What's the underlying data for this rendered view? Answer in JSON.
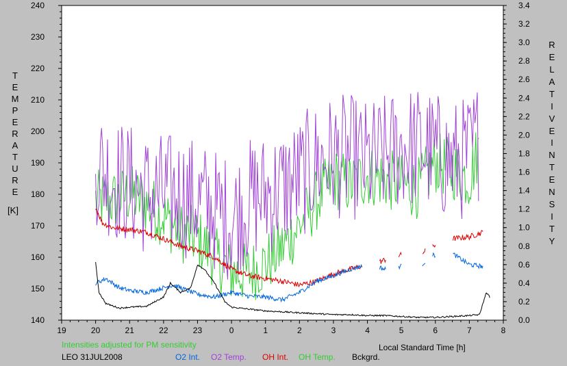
{
  "chart_data": {
    "type": "line",
    "title": "",
    "xlabel": "Local Standard Time [h]",
    "ylabel_left": "TEMPERATURE [K]",
    "ylabel_left_letters": [
      "T",
      "E",
      "M",
      "P",
      "E",
      "R",
      "A",
      "T",
      "U",
      "R",
      "E"
    ],
    "ylabel_left_unit": "[K]",
    "ylabel_right_letters": [
      "R",
      "E",
      "L",
      "A",
      "T",
      "I",
      "V",
      "E",
      "I",
      "N",
      "T",
      "E",
      "N",
      "S",
      "I",
      "T",
      "Y"
    ],
    "xlim": [
      19,
      32
    ],
    "ylim_left": [
      140,
      240
    ],
    "ylim_right": [
      0.0,
      3.4
    ],
    "x_tick_labels": [
      "19",
      "20",
      "21",
      "22",
      "23",
      "0",
      "1",
      "2",
      "3",
      "4",
      "5",
      "6",
      "7",
      "8"
    ],
    "y_left_tick_labels": [
      "140",
      "150",
      "160",
      "170",
      "180",
      "190",
      "200",
      "210",
      "220",
      "230",
      "240"
    ],
    "y_right_tick_labels": [
      "0.0",
      "0.2",
      "0.4",
      "0.6",
      "0.8",
      "1.0",
      "1.2",
      "1.4",
      "1.6",
      "1.8",
      "2.0",
      "2.2",
      "2.4",
      "2.6",
      "2.8",
      "3.0",
      "3.2",
      "3.4"
    ],
    "grid": false,
    "note": "Intensities adjusted for PM sensitivity",
    "station_label": "LEO 31JUL2008",
    "legend": [
      {
        "label": "O2 Int.",
        "color": "#0066dd"
      },
      {
        "label": "O2 Temp.",
        "color": "#a040d8"
      },
      {
        "label": "OH Int.",
        "color": "#dd0000"
      },
      {
        "label": "OH Temp.",
        "color": "#33cc33"
      },
      {
        "label": "Bckgrd.",
        "color": "#000000"
      }
    ],
    "series": [
      {
        "name": "O2 Temp.",
        "axis": "left",
        "color": "#a040d8",
        "x": [
          20.0,
          20.5,
          21.0,
          21.5,
          22.0,
          22.5,
          23.0,
          23.5,
          24.0,
          24.5,
          25.0,
          25.5,
          26.0,
          26.5,
          27.0,
          27.5,
          28.0,
          28.5,
          29.0,
          29.5,
          30.0,
          30.5,
          31.0,
          31.3
        ],
        "y": [
          190,
          185,
          183,
          180,
          180,
          180,
          178,
          175,
          172,
          178,
          180,
          182,
          185,
          190,
          192,
          192,
          190,
          192,
          195,
          195,
          193,
          190,
          192,
          198
        ],
        "spread": 20
      },
      {
        "name": "OH Temp.",
        "axis": "left",
        "color": "#33cc33",
        "x": [
          20.0,
          20.5,
          21.0,
          21.5,
          22.0,
          22.5,
          23.0,
          23.5,
          24.0,
          24.5,
          25.0,
          25.5,
          26.0,
          26.5,
          27.0,
          27.5,
          28.0,
          28.5,
          29.0,
          29.5,
          30.0,
          30.5,
          31.0,
          31.3
        ],
        "y": [
          178,
          178,
          180,
          177,
          173,
          168,
          166,
          160,
          155,
          155,
          158,
          163,
          170,
          178,
          185,
          183,
          186,
          185,
          183,
          182,
          190,
          188,
          185,
          195
        ],
        "spread": 10
      },
      {
        "name": "OH Int.",
        "axis": "right",
        "color": "#dd0000",
        "x": [
          20.0,
          20.2,
          20.5,
          21.0,
          21.5,
          22.0,
          22.5,
          23.0,
          23.5,
          24.0,
          24.5,
          25.0,
          25.5,
          26.0,
          26.5,
          27.0,
          27.5,
          28.0,
          28.3,
          28.5,
          28.9,
          29.6,
          29.9,
          30.5,
          31.0,
          31.4
        ],
        "y": [
          1.22,
          1.05,
          1.0,
          0.98,
          0.95,
          0.88,
          0.8,
          0.75,
          0.68,
          0.55,
          0.48,
          0.45,
          0.42,
          0.38,
          0.42,
          0.5,
          0.55,
          0.6,
          0.62,
          0.65,
          0.7,
          0.72,
          0.8,
          0.88,
          0.9,
          0.95
        ]
      },
      {
        "name": "O2 Int.",
        "axis": "right",
        "color": "#0066dd",
        "x": [
          20.0,
          20.3,
          20.7,
          21.0,
          21.5,
          22.0,
          22.3,
          22.7,
          23.0,
          23.5,
          24.0,
          24.5,
          25.0,
          25.5,
          26.0,
          26.5,
          27.0,
          27.5,
          28.0,
          28.3,
          28.5,
          28.9,
          29.6,
          29.9,
          30.5,
          31.0,
          31.4
        ],
        "y": [
          0.4,
          0.45,
          0.35,
          0.32,
          0.3,
          0.35,
          0.38,
          0.32,
          0.28,
          0.25,
          0.3,
          0.26,
          0.25,
          0.22,
          0.3,
          0.42,
          0.48,
          0.55,
          0.6,
          0.58,
          0.55,
          0.58,
          0.6,
          0.7,
          0.72,
          0.6,
          0.58
        ]
      },
      {
        "name": "Bckgrd.",
        "axis": "right",
        "color": "#000000",
        "x": [
          20.0,
          20.1,
          20.3,
          20.7,
          21.0,
          21.5,
          22.0,
          22.2,
          22.5,
          22.8,
          23.0,
          23.2,
          23.5,
          23.8,
          24.0,
          24.5,
          25.0,
          25.5,
          26.0,
          26.5,
          27.0,
          27.5,
          28.0,
          28.5,
          29.0,
          29.5,
          30.0,
          30.5,
          31.0,
          31.3,
          31.5,
          31.6
        ],
        "y": [
          0.62,
          0.3,
          0.18,
          0.13,
          0.14,
          0.15,
          0.25,
          0.4,
          0.3,
          0.35,
          0.6,
          0.55,
          0.4,
          0.2,
          0.14,
          0.12,
          0.1,
          0.09,
          0.08,
          0.07,
          0.06,
          0.06,
          0.05,
          0.05,
          0.04,
          0.03,
          0.03,
          0.04,
          0.05,
          0.06,
          0.3,
          0.25
        ]
      }
    ]
  }
}
